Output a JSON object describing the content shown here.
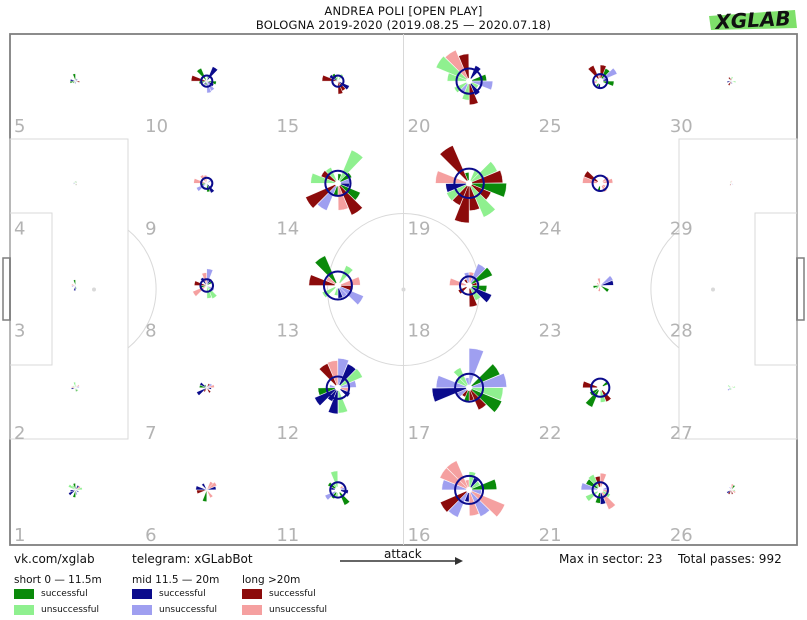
{
  "header": {
    "title": "ANDREA POLI [OPEN PLAY]",
    "subtitle": "BOLOGNA 2019-2020 (2019.08.25 — 2020.07.18)",
    "logo_text": "XGLAB"
  },
  "footer": {
    "vk": "vk.com/xglab",
    "telegram": "telegram: xGLabBot",
    "attack": "attack",
    "max_sector": "Max in sector: 23",
    "total": "Total passes: 992"
  },
  "legend": {
    "groups": [
      {
        "label": "short 0 — 11.5m",
        "successful": "successful",
        "unsuccessful": "unsuccessful",
        "success_color": "#0a8a0a",
        "fail_color": "#8ff08f"
      },
      {
        "label": "mid 11.5 — 20m",
        "successful": "successful",
        "unsuccessful": "unsuccessful",
        "success_color": "#0b0b8c",
        "fail_color": "#9f9ff0"
      },
      {
        "label": "long >20m",
        "successful": "successful",
        "unsuccessful": "unsuccessful",
        "success_color": "#8c0b0b",
        "fail_color": "#f5a0a0"
      }
    ]
  },
  "colors": {
    "pitch_line": "#d9d9d9",
    "border": "#7f7f7f",
    "sector_label": "#b3b3b3"
  },
  "chart_data": {
    "type": "radial-sector-map",
    "max_in_sector": 23,
    "total_passes": 992,
    "sector_ids": [
      1,
      2,
      3,
      4,
      5,
      6,
      7,
      8,
      9,
      10,
      11,
      12,
      13,
      14,
      15,
      16,
      17,
      18,
      19,
      20,
      21,
      22,
      23,
      24,
      25,
      26,
      27,
      28,
      29,
      30
    ],
    "sector_activity": {
      "1": 0.15,
      "2": 0.12,
      "3": 0.12,
      "4": 0.05,
      "5": 0.15,
      "6": 0.25,
      "7": 0.25,
      "8": 0.4,
      "9": 0.35,
      "10": 0.35,
      "11": 0.5,
      "12": 0.75,
      "13": 0.95,
      "14": 0.85,
      "15": 0.35,
      "16": 0.95,
      "17": 0.95,
      "18": 0.6,
      "19": 1.0,
      "20": 0.85,
      "21": 0.5,
      "22": 0.6,
      "23": 0.3,
      "24": 0.5,
      "25": 0.45,
      "26": 0.1,
      "27": 0.06,
      "28": 0,
      "29": 0.04,
      "30": 0.08
    }
  }
}
